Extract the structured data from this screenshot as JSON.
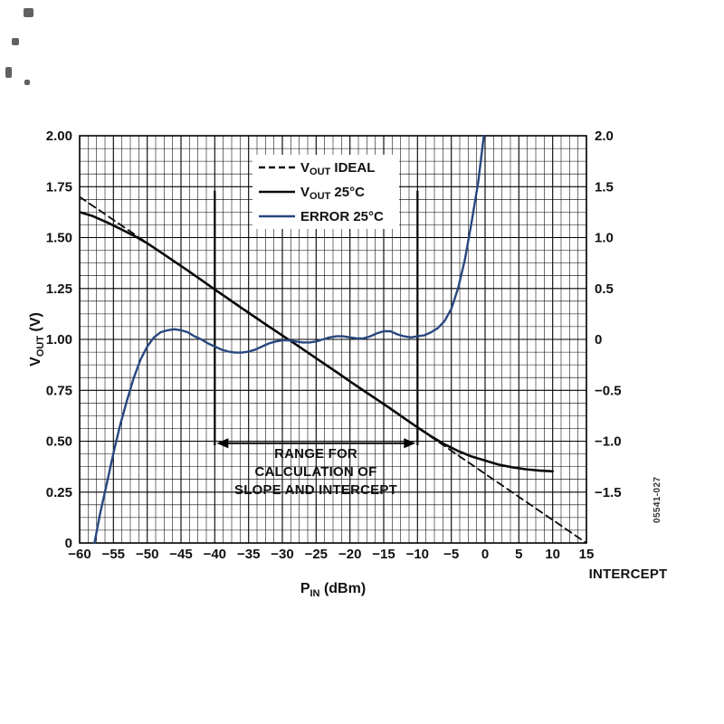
{
  "figure": {
    "fig_number": "05541-027",
    "background": "#ffffff"
  },
  "chart_data": {
    "type": "line",
    "x_min": -60,
    "x_max": 15,
    "yl_min": 0,
    "yl_max": 2,
    "yr_min": -2,
    "yr_max": 2,
    "x_tick_vals": [
      -60,
      -55,
      -50,
      -45,
      -40,
      -35,
      -30,
      -25,
      -20,
      -15,
      -10,
      -5,
      0,
      5,
      10,
      15
    ],
    "x_tick_labels": [
      "−60",
      "−55",
      "−50",
      "−45",
      "−40",
      "−35",
      "−30",
      "−25",
      "−20",
      "−15",
      "−10",
      "−5",
      "0",
      "5",
      "10",
      "15"
    ],
    "yl_tick_vals": [
      2,
      1.75,
      1.5,
      1.25,
      1,
      0.75,
      0.5,
      0.25,
      0
    ],
    "yl_tick_labels": [
      "2.00",
      "1.75",
      "1.50",
      "1.25",
      "1.00",
      "0.75",
      "0.50",
      "0.25",
      "0"
    ],
    "yr_tick_vals": [
      2,
      1.5,
      1,
      0.5,
      0,
      -0.5,
      -1,
      -1.5
    ],
    "yr_tick_labels": [
      "2.0",
      "1.5",
      "1.0",
      "0.5",
      "0",
      "−0.5",
      "−1.0",
      "−1.5"
    ],
    "grid": {
      "on": true,
      "minor_x_step": 1.25,
      "minor_y_step": 0.0625,
      "major_x_step": 5,
      "major_y_step": 0.25
    },
    "xlabel": {
      "pre": "P",
      "sub": "IN",
      "post": " (dBm)"
    },
    "ylabel_left": {
      "pre": "V",
      "sub": "OUT",
      "post": " (V)"
    },
    "colors": {
      "black_curve": "#0a0a0a",
      "error_curve": "#27477f",
      "grid": "#000000"
    },
    "legend": {
      "position": "top-center",
      "items": [
        {
          "pre": "V",
          "sub": "OUT",
          "post": " IDEAL",
          "style": "dashed",
          "color": "#0a0a0a"
        },
        {
          "pre": "V",
          "sub": "OUT",
          "post": " 25°C",
          "style": "solid",
          "color": "#0a0a0a"
        },
        {
          "pre": "ERROR 25°C",
          "sub": "",
          "post": "",
          "style": "solid",
          "color": "#27477f"
        }
      ]
    },
    "series": [
      {
        "name": "VOUT IDEAL",
        "name_id": "vout-ideal-curve",
        "axis": "left",
        "style": "dashed",
        "color": "#0a0a0a",
        "width": 1.8,
        "points": [
          [
            -60,
            1.7
          ],
          [
            15,
            0
          ]
        ]
      },
      {
        "name": "VOUT 25°C",
        "name_id": "vout-25c-curve",
        "axis": "left",
        "style": "solid",
        "color": "#0a0a0a",
        "width": 2.6,
        "points": [
          [
            -60,
            1.625
          ],
          [
            -58,
            1.605
          ],
          [
            -56,
            1.575
          ],
          [
            -54,
            1.543
          ],
          [
            -52,
            1.51
          ],
          [
            -50,
            1.472
          ],
          [
            -48,
            1.428
          ],
          [
            -46,
            1.383
          ],
          [
            -44,
            1.338
          ],
          [
            -42,
            1.292
          ],
          [
            -40,
            1.245
          ],
          [
            -38,
            1.199
          ],
          [
            -36,
            1.153
          ],
          [
            -34,
            1.108
          ],
          [
            -32,
            1.063
          ],
          [
            -30,
            1.019
          ],
          [
            -28,
            0.975
          ],
          [
            -26,
            0.93
          ],
          [
            -24,
            0.885
          ],
          [
            -22,
            0.84
          ],
          [
            -20,
            0.794
          ],
          [
            -18,
            0.749
          ],
          [
            -16,
            0.705
          ],
          [
            -14,
            0.66
          ],
          [
            -12,
            0.614
          ],
          [
            -10,
            0.568
          ],
          [
            -8,
            0.524
          ],
          [
            -6,
            0.485
          ],
          [
            -4,
            0.452
          ],
          [
            -2,
            0.425
          ],
          [
            0,
            0.405
          ],
          [
            2,
            0.385
          ],
          [
            4,
            0.372
          ],
          [
            6,
            0.362
          ],
          [
            8,
            0.356
          ],
          [
            10,
            0.352
          ]
        ]
      },
      {
        "name": "ERROR 25°C",
        "name_id": "error-25c-curve",
        "axis": "right",
        "style": "solid",
        "color": "#27477f",
        "width": 2.4,
        "points": [
          [
            -57.8,
            -2.0
          ],
          [
            -57,
            -1.72
          ],
          [
            -56,
            -1.42
          ],
          [
            -55,
            -1.12
          ],
          [
            -54,
            -0.84
          ],
          [
            -53,
            -0.6
          ],
          [
            -52,
            -0.38
          ],
          [
            -51,
            -0.2
          ],
          [
            -50,
            -0.07
          ],
          [
            -49,
            0.02
          ],
          [
            -48,
            0.07
          ],
          [
            -47,
            0.09
          ],
          [
            -46,
            0.1
          ],
          [
            -45,
            0.09
          ],
          [
            -44,
            0.07
          ],
          [
            -43,
            0.03
          ],
          [
            -42,
            0
          ],
          [
            -41,
            -0.04
          ],
          [
            -40,
            -0.07
          ],
          [
            -39,
            -0.1
          ],
          [
            -38,
            -0.12
          ],
          [
            -37,
            -0.13
          ],
          [
            -36,
            -0.13
          ],
          [
            -35,
            -0.12
          ],
          [
            -34,
            -0.1
          ],
          [
            -33,
            -0.07
          ],
          [
            -32,
            -0.04
          ],
          [
            -31,
            -0.02
          ],
          [
            -30,
            -0.01
          ],
          [
            -29,
            -0.01
          ],
          [
            -28,
            -0.02
          ],
          [
            -27,
            -0.03
          ],
          [
            -26,
            -0.03
          ],
          [
            -25,
            -0.02
          ],
          [
            -24,
            0
          ],
          [
            -23,
            0.02
          ],
          [
            -22,
            0.03
          ],
          [
            -21,
            0.03
          ],
          [
            -20,
            0.02
          ],
          [
            -19,
            0.01
          ],
          [
            -18,
            0.01
          ],
          [
            -17,
            0.03
          ],
          [
            -16,
            0.06
          ],
          [
            -15,
            0.08
          ],
          [
            -14,
            0.08
          ],
          [
            -13,
            0.05
          ],
          [
            -12,
            0.03
          ],
          [
            -11,
            0.02
          ],
          [
            -10,
            0.03
          ],
          [
            -9,
            0.04
          ],
          [
            -8,
            0.07
          ],
          [
            -7,
            0.11
          ],
          [
            -6,
            0.18
          ],
          [
            -5,
            0.3
          ],
          [
            -4,
            0.5
          ],
          [
            -3,
            0.78
          ],
          [
            -2,
            1.15
          ],
          [
            -1,
            1.55
          ],
          [
            0,
            2.1
          ]
        ]
      }
    ],
    "annotations": {
      "range_marker_x": [
        -40,
        -10
      ],
      "range_marker_y_span": [
        0.48,
        1.73
      ],
      "arrow_y": 0.49,
      "range_text": [
        "RANGE FOR",
        "CALCULATION OF",
        "SLOPE AND INTERCEPT"
      ],
      "intercept_label": "INTERCEPT",
      "intercept_x": 15
    }
  }
}
